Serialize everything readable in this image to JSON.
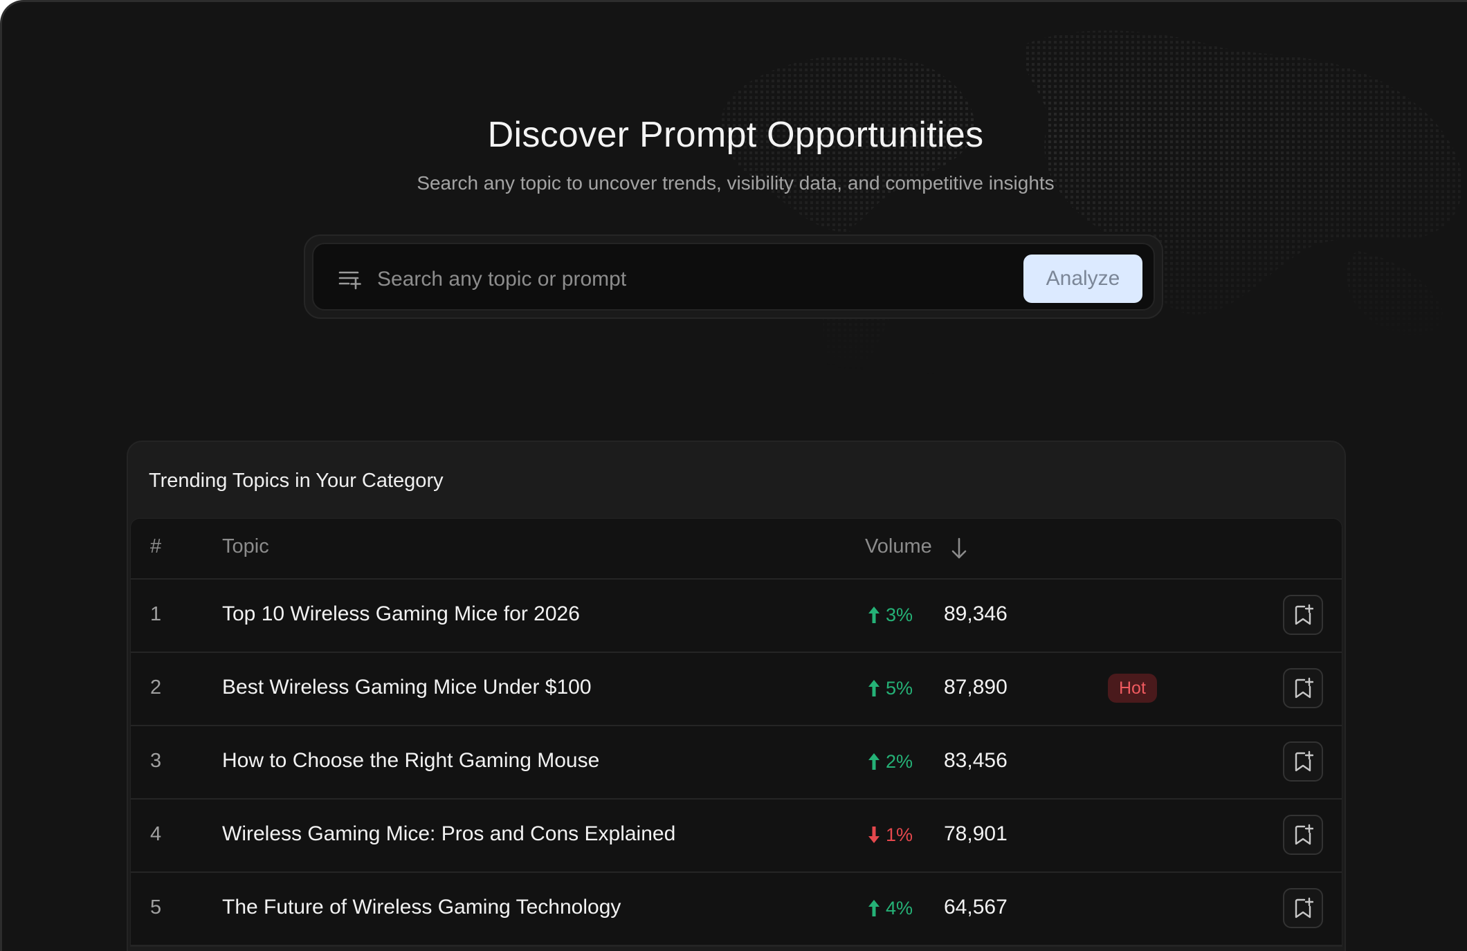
{
  "hero": {
    "title": "Discover Prompt Opportunities",
    "subtitle": "Search any topic to uncover trends, visibility data, and competitive insights"
  },
  "search": {
    "placeholder": "Search any topic or prompt",
    "value": "",
    "icon": "list-add-icon",
    "button_label": "Analyze"
  },
  "trending": {
    "title": "Trending Topics in Your Category",
    "columns": {
      "num": "#",
      "topic": "Topic",
      "volume": "Volume"
    },
    "rows": [
      {
        "num": "1",
        "topic": "Top 10 Wireless Gaming Mice for 2026",
        "trend": "3%",
        "direction": "up",
        "volume": "89,346",
        "badge": ""
      },
      {
        "num": "2",
        "topic": "Best Wireless Gaming Mice Under $100",
        "trend": "5%",
        "direction": "up",
        "volume": "87,890",
        "badge": "Hot"
      },
      {
        "num": "3",
        "topic": "How to Choose the Right Gaming Mouse",
        "trend": "2%",
        "direction": "up",
        "volume": "83,456",
        "badge": ""
      },
      {
        "num": "4",
        "topic": "Wireless Gaming Mice: Pros and Cons Explained",
        "trend": "1%",
        "direction": "down",
        "volume": "78,901",
        "badge": ""
      },
      {
        "num": "5",
        "topic": "The Future of Wireless Gaming Technology",
        "trend": "4%",
        "direction": "up",
        "volume": "64,567",
        "badge": ""
      }
    ]
  },
  "colors": {
    "background": "#141414",
    "trend_up": "#25b277",
    "trend_down": "#e5484d",
    "hot_badge_bg": "#4a1a1c",
    "hot_badge_text": "#ef5a5f",
    "analyze_bg": "#dceaff"
  }
}
